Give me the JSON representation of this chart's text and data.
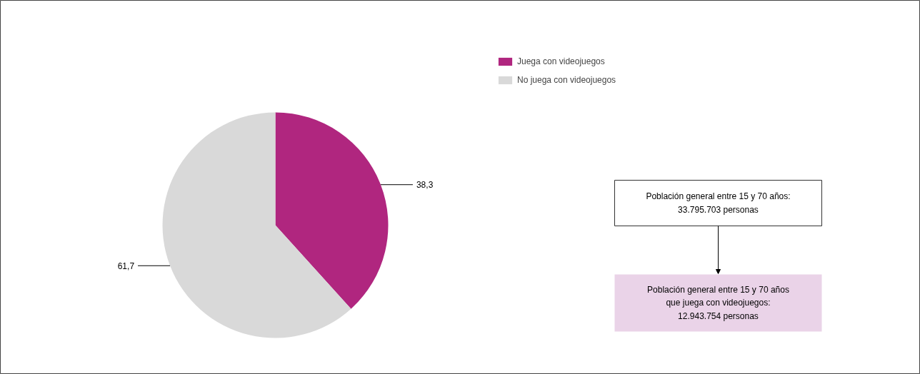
{
  "chart_data": {
    "type": "pie",
    "categories": [
      "Juega con videojuegos",
      "No juega con videojuegos"
    ],
    "values": [
      38.3,
      61.7
    ],
    "colors": [
      "#b0267f",
      "#d9d9d9"
    ],
    "value_labels": [
      "38,3",
      "61,7"
    ],
    "legend": "top right",
    "annotations": [
      "Población general entre 15 y 70 años:\n33.795.703 personas",
      "Población general entre 15 y 70 años\nque juega con videojuegos:\n12.943.754 personas"
    ]
  }
}
